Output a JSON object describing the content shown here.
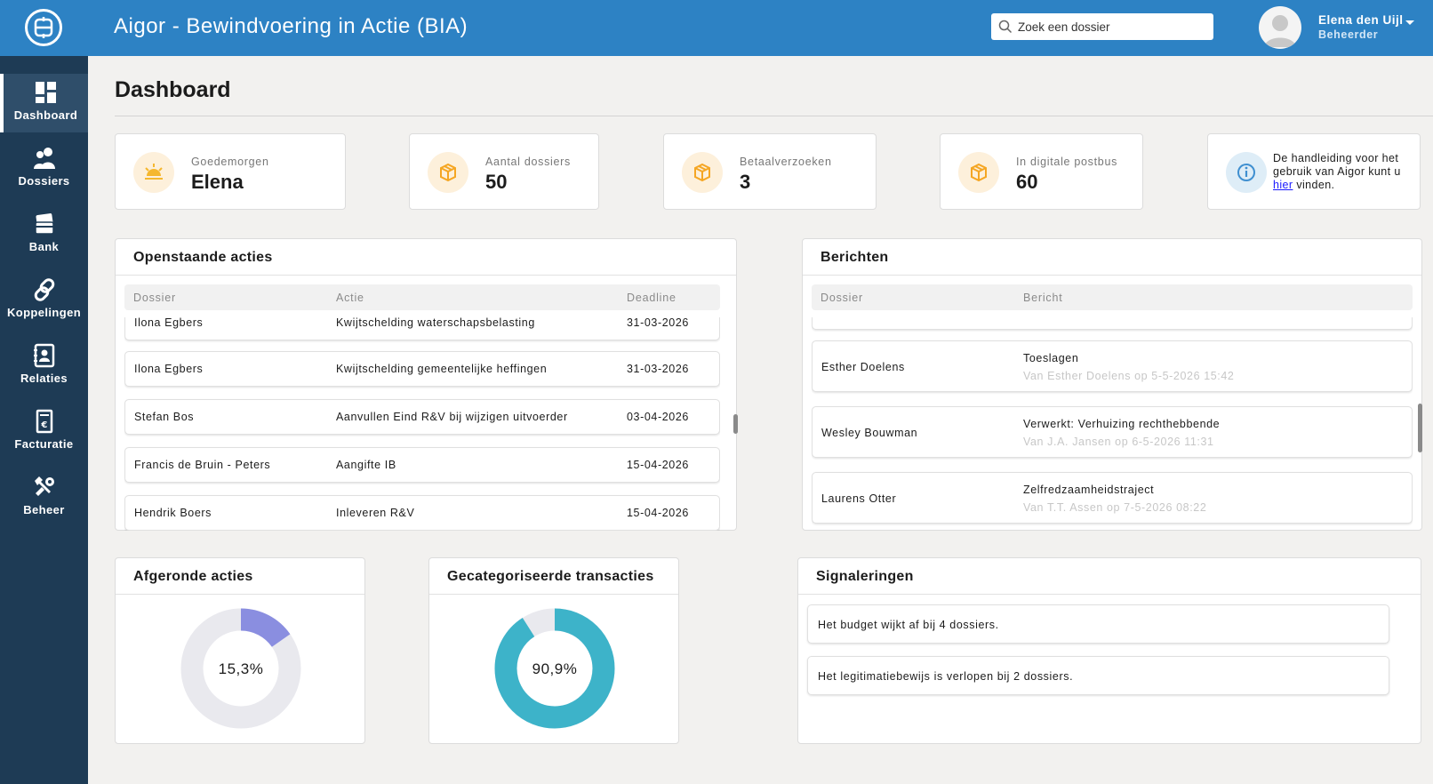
{
  "header": {
    "title": "Aigor - Bewindvoering in Actie (BIA)",
    "search_placeholder": "Zoek een dossier",
    "user_name": "Elena den Uijl",
    "user_role": "Beheerder"
  },
  "sidebar": {
    "items": [
      {
        "label": "Dashboard",
        "icon": "dashboard-icon",
        "active": true
      },
      {
        "label": "Dossiers",
        "icon": "users-icon"
      },
      {
        "label": "Bank",
        "icon": "bank-cards-icon"
      },
      {
        "label": "Koppelingen",
        "icon": "link-icon"
      },
      {
        "label": "Relaties",
        "icon": "contact-card-icon"
      },
      {
        "label": "Facturatie",
        "icon": "invoice-icon"
      },
      {
        "label": "Beheer",
        "icon": "tools-icon"
      }
    ]
  },
  "page": {
    "title": "Dashboard"
  },
  "stats": {
    "greeting": {
      "label": "Goedemorgen",
      "value": "Elena",
      "icon": "sun-icon"
    },
    "dossiers": {
      "label": "Aantal dossiers",
      "value": "50",
      "icon": "box-icon"
    },
    "payments": {
      "label": "Betaalverzoeken",
      "value": "3",
      "icon": "box-icon"
    },
    "postbox": {
      "label": "In digitale postbus",
      "value": "60",
      "icon": "box-icon"
    },
    "manual": {
      "text_before": "De handleiding voor het gebruik van Aigor kunt u ",
      "link": "hier",
      "text_after": " vinden.",
      "icon": "info-icon"
    }
  },
  "actions": {
    "title": "Openstaande acties",
    "columns": [
      "Dossier",
      "Actie",
      "Deadline"
    ],
    "rows": [
      {
        "dossier": "Ilona Egbers",
        "actie": "Kwijtschelding waterschapsbelasting",
        "deadline": "31-03-2026"
      },
      {
        "dossier": "Ilona Egbers",
        "actie": "Kwijtschelding gemeentelijke heffingen",
        "deadline": "31-03-2026"
      },
      {
        "dossier": "Stefan Bos",
        "actie": "Aanvullen Eind R&V bij wijzigen uitvoerder",
        "deadline": "03-04-2026"
      },
      {
        "dossier": "Francis de Bruin - Peters",
        "actie": "Aangifte IB",
        "deadline": "15-04-2026"
      },
      {
        "dossier": "Hendrik Boers",
        "actie": "Inleveren R&V",
        "deadline": "15-04-2026"
      }
    ]
  },
  "messages": {
    "title": "Berichten",
    "columns": [
      "Dossier",
      "Bericht"
    ],
    "rows": [
      {
        "dossier": "Esther Doelens",
        "subject": "Toeslagen",
        "meta": "Van Esther Doelens op 5-5-2026 15:42"
      },
      {
        "dossier": "Wesley Bouwman",
        "subject": "Verwerkt: Verhuizing rechthebbende",
        "meta": "Van J.A. Jansen op 6-5-2026 11:31"
      },
      {
        "dossier": "Laurens Otter",
        "subject": "Zelfredzaamheidstraject",
        "meta": "Van T.T. Assen op 7-5-2026 08:22"
      }
    ]
  },
  "completed": {
    "title": "Afgeronde acties",
    "label": "15,3%",
    "fraction": 0.153,
    "color": "#8a8ee0",
    "track": "#e9e9ee"
  },
  "categorized": {
    "title": "Gecategoriseerde transacties",
    "label": "90,9%",
    "fraction": 0.909,
    "color": "#3db3c9",
    "track": "#e9e9ee"
  },
  "signals": {
    "title": "Signaleringen",
    "items": [
      "Het budget wijkt af bij 4 dossiers.",
      "Het legitimatiebewijs is verlopen bij 2 dossiers."
    ]
  },
  "colors": {
    "topbar": "#2d82c4",
    "sidebar": "#1e3b55",
    "accent_orange": "#f5a623"
  }
}
